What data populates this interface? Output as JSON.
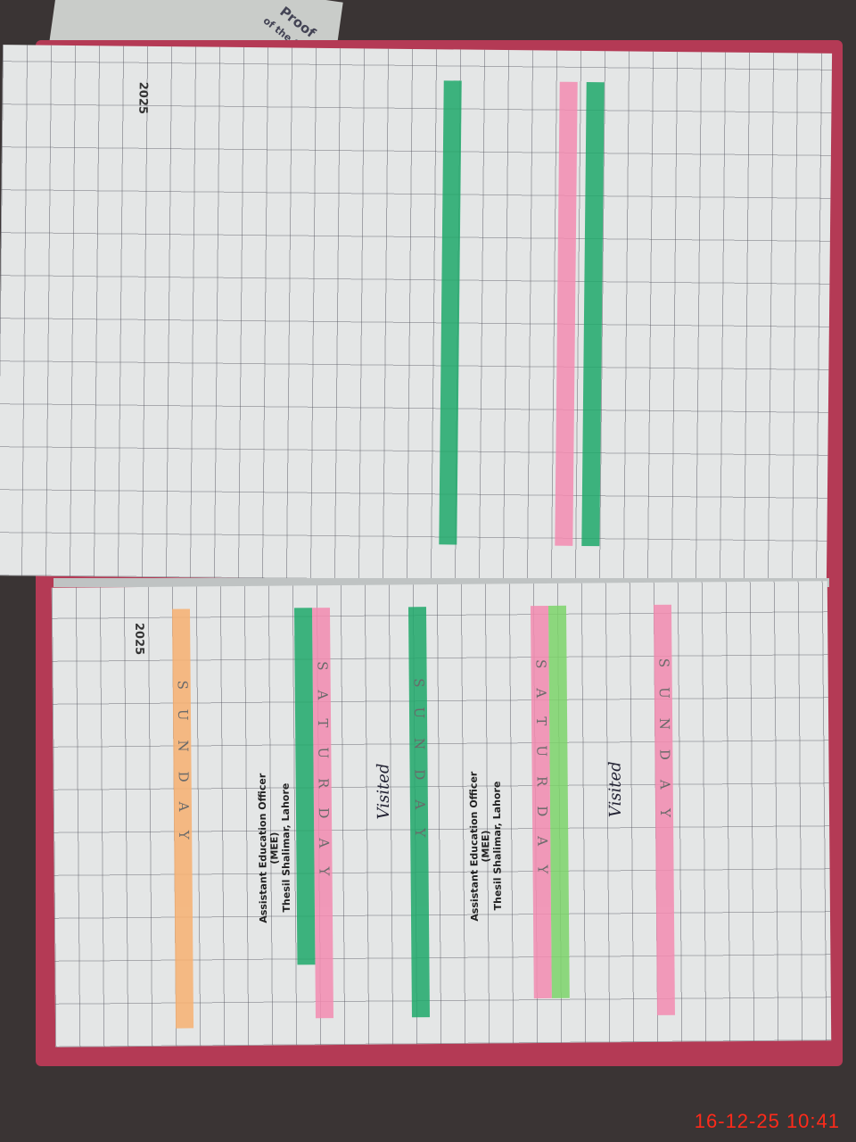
{
  "background_document": {
    "lines": [
      "Proof",
      "of the School"
    ]
  },
  "register": {
    "year_top": "2025",
    "year_bottom": "2025",
    "highlight_letters": {
      "sunday": "SUNDAY",
      "saturday": "SATURDAY"
    },
    "stamp": {
      "title": "Assistant Education Officer",
      "code": "(MEE)",
      "location": "Thesil Shalimar, Lahore"
    },
    "handwritten": {
      "visited": "Visited"
    },
    "highlight_colors": {
      "green": "#1fa86a",
      "pink": "#f38bb0",
      "orange": "#f7b071",
      "light_green": "#7cd36a"
    }
  },
  "timestamp": "16-12-25  10:41"
}
